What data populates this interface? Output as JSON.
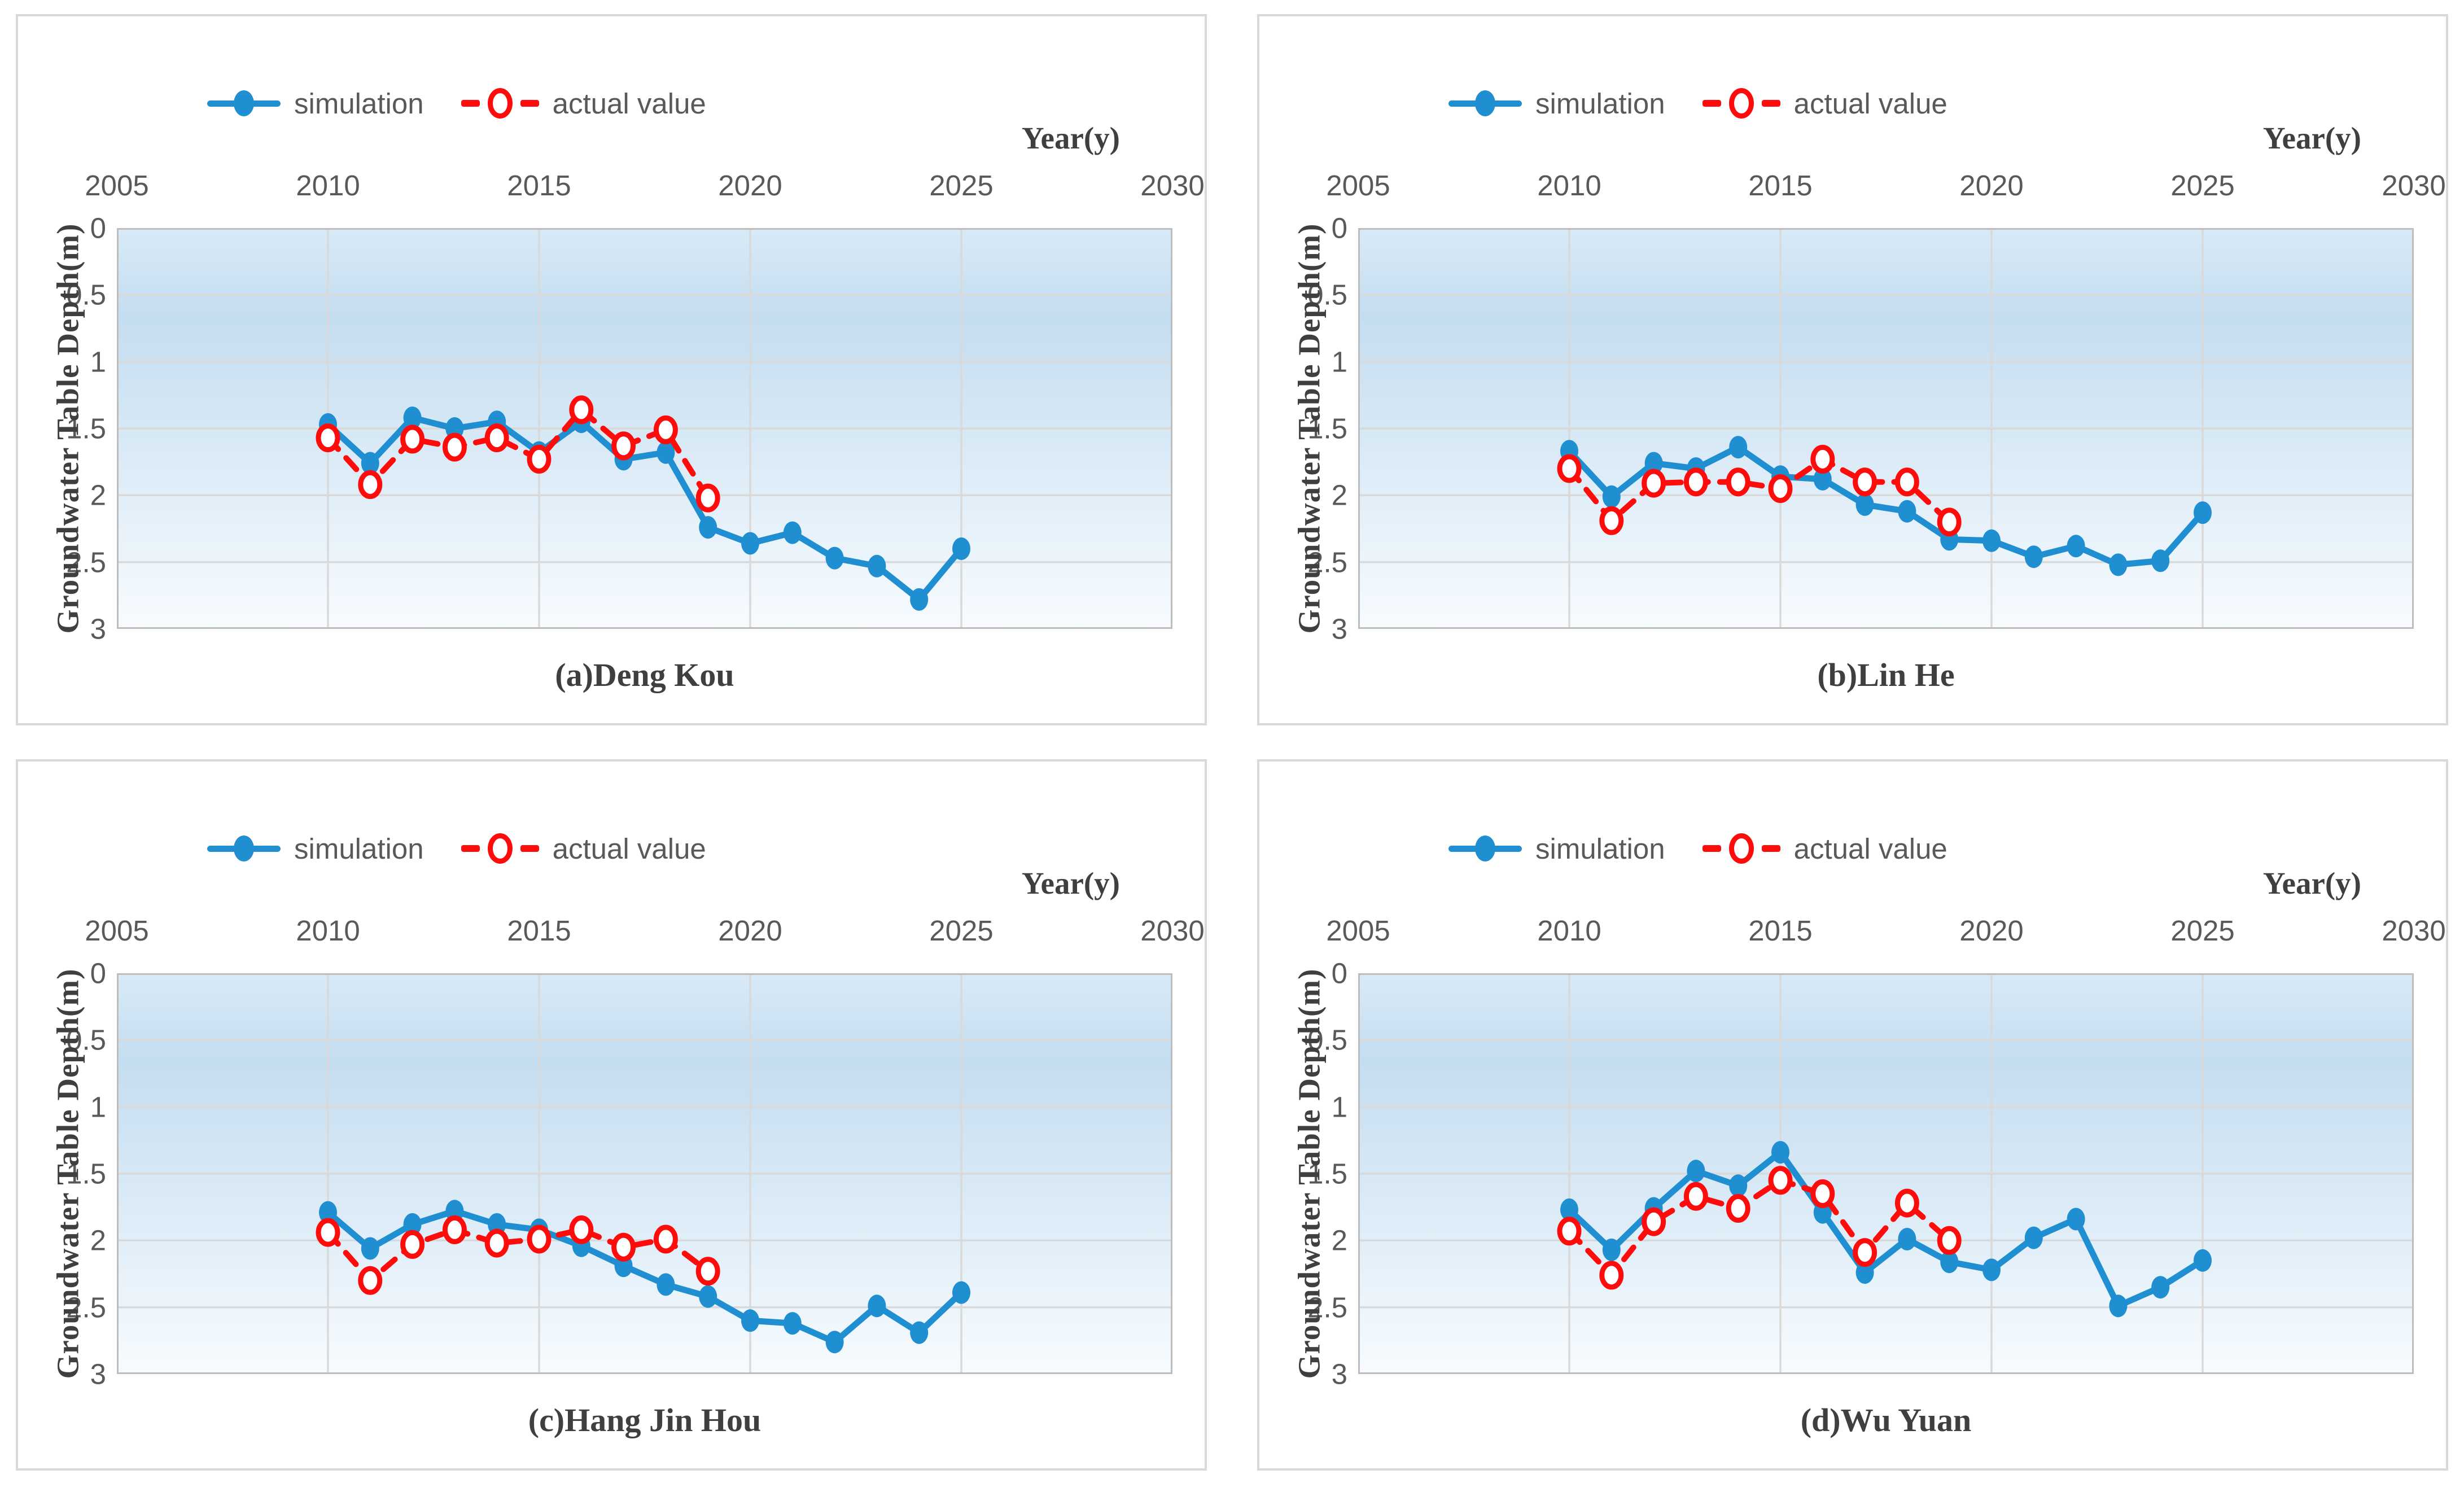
{
  "legend": {
    "simulation_label": "simulation",
    "actual_label": "actual value"
  },
  "axes": {
    "x_title": "Year(y)",
    "y_title": "Groundwater Table Depth(m)",
    "x_ticks": [
      "2005",
      "2010",
      "2015",
      "2020",
      "2025",
      "2030"
    ],
    "y_ticks": [
      "0",
      "0.5",
      "1",
      "1.5",
      "2",
      "2.5",
      "3"
    ]
  },
  "colors": {
    "simulation": "#1F8FD1",
    "actual": "#FE0B0B",
    "grid": "#D9D9D9",
    "plot_border": "#BDBDBD",
    "tick_text": "#595959",
    "title_text": "#3F3F3F",
    "panel_border": "#D9D9D9",
    "plot_bg_top": "#D9EAF7",
    "plot_bg_mid": "#C4DDF0",
    "plot_bg_bottom": "#F7FBFE"
  },
  "chart_data": [
    {
      "type": "line",
      "title": "(a)Deng Kou",
      "xlabel": "Year(y)",
      "ylabel": "Groundwater Table Depth(m)",
      "xlim": [
        2005,
        2030
      ],
      "ylim": [
        0,
        3
      ],
      "y_inverted": true,
      "x_gridlines": [
        2010,
        2015,
        2020,
        2025
      ],
      "y_gridlines": [
        0.5,
        1,
        1.5,
        2,
        2.5
      ],
      "legend_position": "top-left",
      "series": [
        {
          "name": "simulation",
          "x": [
            2010,
            2011,
            2012,
            2013,
            2014,
            2015,
            2016,
            2017,
            2018,
            2019,
            2020,
            2021,
            2022,
            2023,
            2024,
            2025
          ],
          "values": [
            1.47,
            1.76,
            1.42,
            1.5,
            1.45,
            1.68,
            1.45,
            1.73,
            1.68,
            2.24,
            2.36,
            2.28,
            2.47,
            2.53,
            2.78,
            2.4
          ]
        },
        {
          "name": "actual value",
          "x": [
            2010,
            2011,
            2012,
            2013,
            2014,
            2015,
            2016,
            2017,
            2018,
            2019
          ],
          "values": [
            1.57,
            1.92,
            1.58,
            1.64,
            1.57,
            1.73,
            1.36,
            1.63,
            1.51,
            2.02
          ]
        }
      ]
    },
    {
      "type": "line",
      "title": "(b)Lin He",
      "xlabel": "Year(y)",
      "ylabel": "Groundwater Table Depth(m)",
      "xlim": [
        2005,
        2030
      ],
      "ylim": [
        0,
        3
      ],
      "y_inverted": true,
      "x_gridlines": [
        2010,
        2015,
        2020,
        2025
      ],
      "y_gridlines": [
        0.5,
        1,
        1.5,
        2,
        2.5
      ],
      "legend_position": "top-left",
      "series": [
        {
          "name": "simulation",
          "x": [
            2010,
            2011,
            2012,
            2013,
            2014,
            2015,
            2016,
            2017,
            2018,
            2019,
            2020,
            2021,
            2022,
            2023,
            2024,
            2025
          ],
          "values": [
            1.67,
            2.01,
            1.76,
            1.8,
            1.64,
            1.86,
            1.88,
            2.07,
            2.12,
            2.33,
            2.34,
            2.46,
            2.38,
            2.52,
            2.49,
            2.13
          ]
        },
        {
          "name": "actual value",
          "x": [
            2010,
            2011,
            2012,
            2013,
            2014,
            2015,
            2016,
            2017,
            2018,
            2019
          ],
          "values": [
            1.8,
            2.19,
            1.91,
            1.9,
            1.9,
            1.95,
            1.73,
            1.9,
            1.9,
            2.2
          ]
        }
      ]
    },
    {
      "type": "line",
      "title": "(c)Hang Jin Hou",
      "xlabel": "Year(y)",
      "ylabel": "Groundwater Table Depth(m)",
      "xlim": [
        2005,
        2030
      ],
      "ylim": [
        0,
        3
      ],
      "y_inverted": true,
      "x_gridlines": [
        2010,
        2015,
        2020,
        2025
      ],
      "y_gridlines": [
        0.5,
        1,
        1.5,
        2,
        2.5
      ],
      "legend_position": "top-left",
      "series": [
        {
          "name": "simulation",
          "x": [
            2010,
            2011,
            2012,
            2013,
            2014,
            2015,
            2016,
            2017,
            2018,
            2019,
            2020,
            2021,
            2022,
            2023,
            2024,
            2025
          ],
          "values": [
            1.79,
            2.06,
            1.88,
            1.78,
            1.88,
            1.92,
            2.04,
            2.19,
            2.33,
            2.42,
            2.6,
            2.62,
            2.76,
            2.49,
            2.69,
            2.39
          ]
        },
        {
          "name": "actual value",
          "x": [
            2010,
            2011,
            2012,
            2013,
            2014,
            2015,
            2016,
            2017,
            2018,
            2019
          ],
          "values": [
            1.94,
            2.3,
            2.03,
            1.92,
            2.02,
            1.99,
            1.92,
            2.05,
            1.99,
            2.23
          ]
        }
      ]
    },
    {
      "type": "line",
      "title": "(d)Wu Yuan",
      "xlabel": "Year(y)",
      "ylabel": "Groundwater Table Depth(m)",
      "xlim": [
        2005,
        2030
      ],
      "ylim": [
        0,
        3
      ],
      "y_inverted": true,
      "x_gridlines": [
        2010,
        2015,
        2020,
        2025
      ],
      "y_gridlines": [
        0.5,
        1,
        1.5,
        2,
        2.5
      ],
      "legend_position": "top-left",
      "series": [
        {
          "name": "simulation",
          "x": [
            2010,
            2011,
            2012,
            2013,
            2014,
            2015,
            2016,
            2017,
            2018,
            2019,
            2020,
            2021,
            2022,
            2023,
            2024,
            2025
          ],
          "values": [
            1.77,
            2.07,
            1.76,
            1.48,
            1.59,
            1.34,
            1.79,
            2.24,
            1.99,
            2.16,
            2.22,
            1.98,
            1.84,
            2.49,
            2.35,
            2.15
          ]
        },
        {
          "name": "actual value",
          "x": [
            2010,
            2011,
            2012,
            2013,
            2014,
            2015,
            2016,
            2017,
            2018,
            2019
          ],
          "values": [
            1.93,
            2.26,
            1.86,
            1.67,
            1.76,
            1.55,
            1.65,
            2.09,
            1.72,
            2.0
          ]
        }
      ]
    }
  ]
}
